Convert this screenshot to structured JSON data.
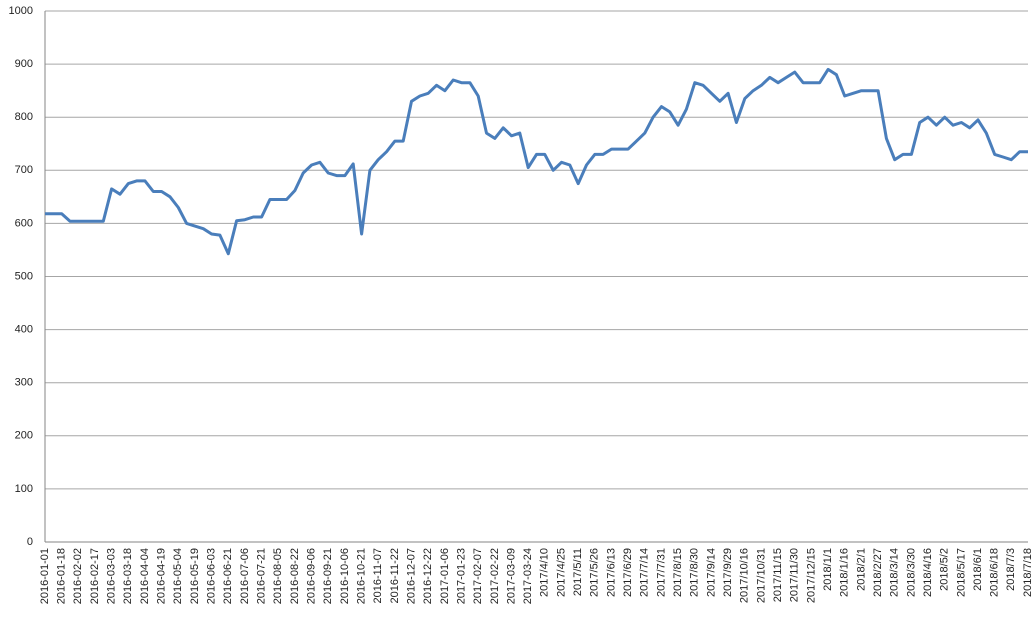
{
  "chart_data": {
    "type": "line",
    "color": "#4a7ebb",
    "grid": true,
    "ylim": [
      0,
      1000
    ],
    "yticks": [
      0,
      100,
      200,
      300,
      400,
      500,
      600,
      700,
      800,
      900,
      1000
    ],
    "categories": [
      "2016-01-01",
      null,
      "2016-01-18",
      null,
      "2016-02-02",
      null,
      "2016-02-17",
      null,
      "2016-03-03",
      null,
      "2016-03-18",
      null,
      "2016-04-04",
      null,
      "2016-04-19",
      null,
      "2016-05-04",
      null,
      "2016-05-19",
      null,
      "2016-06-03",
      null,
      "2016-06-21",
      null,
      "2016-07-06",
      null,
      "2016-07-21",
      null,
      "2016-08-05",
      null,
      "2016-08-22",
      null,
      "2016-09-06",
      null,
      "2016-09-21",
      null,
      "2016-10-06",
      null,
      "2016-10-21",
      null,
      "2016-11-07",
      null,
      "2016-11-22",
      null,
      "2016-12-07",
      null,
      "2016-12-22",
      null,
      "2017-01-06",
      null,
      "2017-01-23",
      null,
      "2017-02-07",
      null,
      "2017-02-22",
      null,
      "2017-03-09",
      null,
      "2017-03-24",
      null,
      "2017/4/10",
      null,
      "2017/4/25",
      null,
      "2017/5/11",
      null,
      "2017/5/26",
      null,
      "2017/6/13",
      null,
      "2017/6/29",
      null,
      "2017/7/14",
      null,
      "2017/7/31",
      null,
      "2017/8/15",
      null,
      "2017/8/30",
      null,
      "2017/9/14",
      null,
      "2017/9/29",
      null,
      "2017/10/16",
      null,
      "2017/10/31",
      null,
      "2017/11/15",
      null,
      "2017/11/30",
      null,
      "2017/12/15",
      null,
      "2018/1/1",
      null,
      "2018/1/16",
      null,
      "2018/2/1",
      null,
      "2018/2/27",
      null,
      "2018/3/14",
      null,
      "2018/3/30",
      null,
      "2018/4/16",
      null,
      "2018/5/2",
      null,
      "2018/5/17",
      null,
      "2018/6/1",
      null,
      "2018/6/18",
      null,
      "2018/7/3",
      null,
      "2018/7/18"
    ],
    "values": [
      618,
      618,
      618,
      604,
      604,
      604,
      604,
      604,
      665,
      655,
      675,
      680,
      680,
      660,
      660,
      650,
      630,
      600,
      595,
      590,
      580,
      578,
      543,
      605,
      607,
      612,
      612,
      645,
      645,
      645,
      662,
      695,
      710,
      715,
      695,
      690,
      690,
      712,
      580,
      700,
      720,
      735,
      755,
      755,
      830,
      840,
      845,
      860,
      850,
      870,
      865,
      865,
      840,
      770,
      760,
      780,
      765,
      770,
      705,
      730,
      730,
      700,
      715,
      710,
      675,
      710,
      730,
      730,
      740,
      740,
      740,
      755,
      770,
      800,
      820,
      810,
      785,
      815,
      865,
      860,
      845,
      830,
      845,
      790,
      835,
      850,
      860,
      875,
      865,
      875,
      885,
      865,
      865,
      865,
      890,
      880,
      840,
      845,
      850,
      850,
      850,
      760,
      720,
      730,
      730,
      790,
      800,
      785,
      800,
      785,
      790,
      780,
      795,
      770,
      730,
      725,
      720,
      735,
      735
    ]
  }
}
